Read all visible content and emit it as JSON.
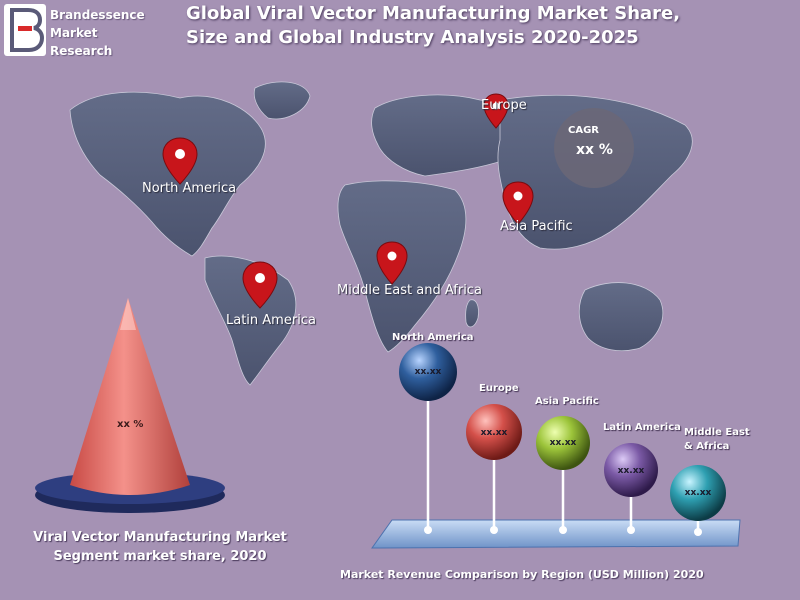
{
  "brand": {
    "text": "Brandessence\nMarket\nResearch",
    "letter": "B",
    "accent_color": "#d92a2a"
  },
  "title": "Global Viral Vector Manufacturing Market Share, Size and Global Industry Analysis 2020-2025",
  "map": {
    "pin_color": "#c8151b",
    "regions": [
      {
        "label": "Europe"
      },
      {
        "label": "North America"
      },
      {
        "label": "Asia Pacific"
      },
      {
        "label": "Middle East and Africa"
      },
      {
        "label": "Latin America"
      }
    ],
    "cagr": {
      "label": "CAGR",
      "value": "xx %"
    }
  },
  "segment": {
    "cone_value": "xx %",
    "caption": "Viral Vector Manufacturing  Market Segment market share, 2020",
    "cone_color": "#e7706b",
    "base_color": "#1f2a5c"
  },
  "revenue": {
    "caption": "Market Revenue Comparison by Region (USD Million) 2020",
    "spheres": [
      {
        "label": "North America",
        "value": "xx.xx",
        "color": "#2f5f9e"
      },
      {
        "label": "Europe",
        "value": "xx.xx",
        "color": "#d4504a"
      },
      {
        "label": "Asia Pacific",
        "value": "xx.xx",
        "color": "#9cc43a"
      },
      {
        "label": "Latin America",
        "value": "xx.xx",
        "color": "#7b5aa6"
      },
      {
        "label": "Middle East\n& Africa",
        "value": "xx.xx",
        "color": "#2e9fb1"
      }
    ]
  }
}
